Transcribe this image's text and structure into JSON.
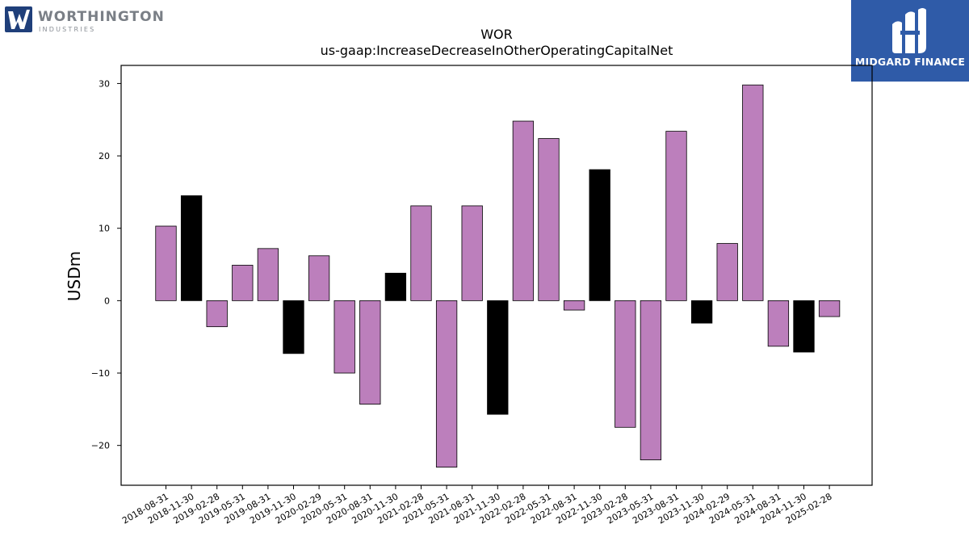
{
  "logos": {
    "left": {
      "name": "WORTHINGTON",
      "subtitle": "INDUSTRIES",
      "color": "#1f3f7a"
    },
    "right": {
      "name": "MIDGARD FINANCE",
      "color": "#2f5ba8"
    }
  },
  "chart_data": {
    "type": "bar",
    "title": "WOR",
    "subtitle": "us-gaap:IncreaseDecreaseInOtherOperatingCapitalNet",
    "xlabel": "",
    "ylabel": "USDm",
    "ylim": [
      -25.5,
      32.5
    ],
    "yticks": [
      -20,
      -10,
      0,
      10,
      20,
      30
    ],
    "ytick_labels": [
      "−20",
      "−10",
      "0",
      "10",
      "20",
      "30"
    ],
    "grid": false,
    "legend": "none",
    "colors": {
      "default": "#bc7fbc",
      "highlight": "#000000",
      "edge": "#000000"
    },
    "categories": [
      "2018-08-31",
      "2018-11-30",
      "2019-02-28",
      "2019-05-31",
      "2019-08-31",
      "2019-11-30",
      "2020-02-29",
      "2020-05-31",
      "2020-08-31",
      "2020-11-30",
      "2021-02-28",
      "2021-05-31",
      "2021-08-31",
      "2021-11-30",
      "2022-02-28",
      "2022-05-31",
      "2022-08-31",
      "2022-11-30",
      "2023-02-28",
      "2023-05-31",
      "2023-08-31",
      "2023-11-30",
      "2024-02-29",
      "2024-05-31",
      "2024-08-31",
      "2024-11-30",
      "2025-02-28"
    ],
    "values": [
      10.3,
      14.5,
      -3.6,
      4.9,
      7.2,
      -7.3,
      6.2,
      -10.0,
      -14.3,
      3.8,
      13.1,
      -23.0,
      13.1,
      -15.7,
      24.8,
      22.4,
      -1.3,
      18.1,
      -17.5,
      -22.0,
      23.4,
      -3.1,
      7.9,
      29.8,
      -6.3,
      -7.1,
      -2.2
    ],
    "highlight": [
      false,
      true,
      false,
      false,
      false,
      true,
      false,
      false,
      false,
      true,
      false,
      false,
      false,
      true,
      false,
      false,
      false,
      true,
      false,
      false,
      false,
      true,
      false,
      false,
      false,
      true,
      false
    ]
  }
}
